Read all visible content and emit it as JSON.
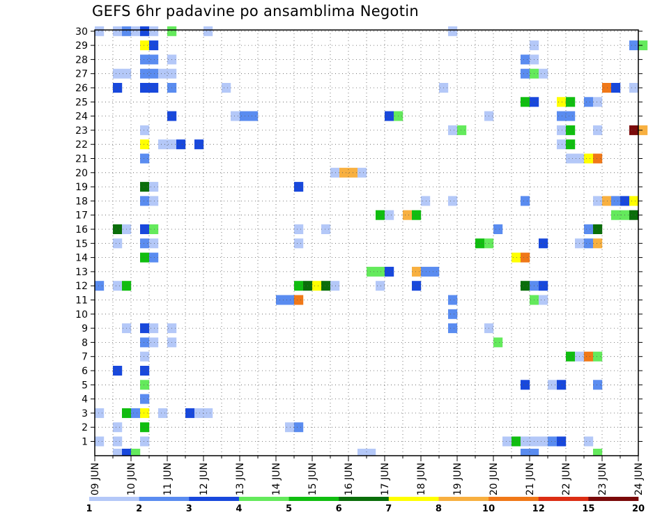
{
  "chart_data": {
    "type": "heatmap",
    "title": "GEFS 6hr padavine po ansamblima Negotin",
    "xlabel": "",
    "ylabel": "",
    "x_tick_labels": [
      "09 JUN",
      "10 JUN",
      "11 JUN",
      "12 JUN",
      "13 JUN",
      "14 JUN",
      "15 JUN",
      "16 JUN",
      "17 JUN",
      "18 JUN",
      "19 JUN",
      "20 JUN",
      "21 JUN",
      "22 JUN",
      "23 JUN",
      "24 JUN"
    ],
    "x_range_days": [
      0,
      15
    ],
    "time_step_hours": 6,
    "ensemble_members": [
      1,
      2,
      3,
      4,
      5,
      6,
      7,
      8,
      9,
      10,
      11,
      12,
      13,
      14,
      15,
      16,
      17,
      18,
      19,
      20,
      21,
      22,
      23,
      24,
      25,
      26,
      27,
      28,
      29,
      30
    ],
    "y_tick_labels": [
      "1",
      "2",
      "3",
      "4",
      "5",
      "6",
      "7",
      "8",
      "9",
      "10",
      "11",
      "12",
      "13",
      "14",
      "15",
      "16",
      "17",
      "18",
      "19",
      "20",
      "21",
      "22",
      "23",
      "24",
      "25",
      "26",
      "27",
      "28",
      "29",
      "30"
    ],
    "grid": true,
    "colorbar": {
      "position": "bottom",
      "tick_labels": [
        "1",
        "2",
        "3",
        "4",
        "5",
        "6",
        "7",
        "8",
        "10",
        "12",
        "15",
        "20"
      ],
      "colors": [
        "#b4c8f8",
        "#5a8cf0",
        "#1848dc",
        "#64ea5c",
        "#10be10",
        "#0a6e0a",
        "#ffff00",
        "#f8b040",
        "#f07818",
        "#dc2e14",
        "#7a0a0a"
      ]
    },
    "cells": [
      {
        "member": 30,
        "step": 0,
        "cls": 0
      },
      {
        "member": 30,
        "step": 2,
        "cls": 0
      },
      {
        "member": 30,
        "step": 3,
        "cls": 1
      },
      {
        "member": 30,
        "step": 4,
        "cls": 0
      },
      {
        "member": 30,
        "step": 5,
        "cls": 2
      },
      {
        "member": 30,
        "step": 6,
        "cls": 0
      },
      {
        "member": 30,
        "step": 8,
        "cls": 3
      },
      {
        "member": 30,
        "step": 12,
        "cls": 0
      },
      {
        "member": 30,
        "step": 39,
        "cls": 0
      },
      {
        "member": 29,
        "step": 5,
        "cls": 6
      },
      {
        "member": 29,
        "step": 6,
        "cls": 2
      },
      {
        "member": 29,
        "step": 48,
        "cls": 0
      },
      {
        "member": 29,
        "step": 59,
        "cls": 1
      },
      {
        "member": 29,
        "step": 60,
        "cls": 3
      },
      {
        "member": 28,
        "step": 5,
        "cls": 1
      },
      {
        "member": 28,
        "step": 6,
        "cls": 1
      },
      {
        "member": 28,
        "step": 8,
        "cls": 0
      },
      {
        "member": 28,
        "step": 47,
        "cls": 1
      },
      {
        "member": 28,
        "step": 48,
        "cls": 0
      },
      {
        "member": 27,
        "step": 2,
        "cls": 0
      },
      {
        "member": 27,
        "step": 3,
        "cls": 0
      },
      {
        "member": 27,
        "step": 5,
        "cls": 1
      },
      {
        "member": 27,
        "step": 6,
        "cls": 1
      },
      {
        "member": 27,
        "step": 7,
        "cls": 0
      },
      {
        "member": 27,
        "step": 8,
        "cls": 0
      },
      {
        "member": 27,
        "step": 47,
        "cls": 1
      },
      {
        "member": 27,
        "step": 48,
        "cls": 3
      },
      {
        "member": 27,
        "step": 49,
        "cls": 0
      },
      {
        "member": 26,
        "step": 2,
        "cls": 2
      },
      {
        "member": 26,
        "step": 5,
        "cls": 2
      },
      {
        "member": 26,
        "step": 6,
        "cls": 2
      },
      {
        "member": 26,
        "step": 8,
        "cls": 1
      },
      {
        "member": 26,
        "step": 14,
        "cls": 0
      },
      {
        "member": 26,
        "step": 38,
        "cls": 0
      },
      {
        "member": 26,
        "step": 56,
        "cls": 8
      },
      {
        "member": 26,
        "step": 57,
        "cls": 2
      },
      {
        "member": 26,
        "step": 59,
        "cls": 0
      },
      {
        "member": 25,
        "step": 47,
        "cls": 4
      },
      {
        "member": 25,
        "step": 48,
        "cls": 2
      },
      {
        "member": 25,
        "step": 51,
        "cls": 6
      },
      {
        "member": 25,
        "step": 52,
        "cls": 4
      },
      {
        "member": 25,
        "step": 54,
        "cls": 1
      },
      {
        "member": 25,
        "step": 55,
        "cls": 0
      },
      {
        "member": 24,
        "step": 8,
        "cls": 2
      },
      {
        "member": 24,
        "step": 15,
        "cls": 0
      },
      {
        "member": 24,
        "step": 16,
        "cls": 1
      },
      {
        "member": 24,
        "step": 17,
        "cls": 1
      },
      {
        "member": 24,
        "step": 32,
        "cls": 2
      },
      {
        "member": 24,
        "step": 33,
        "cls": 3
      },
      {
        "member": 24,
        "step": 43,
        "cls": 0
      },
      {
        "member": 24,
        "step": 51,
        "cls": 1
      },
      {
        "member": 24,
        "step": 52,
        "cls": 1
      },
      {
        "member": 23,
        "step": 5,
        "cls": 0
      },
      {
        "member": 23,
        "step": 39,
        "cls": 0
      },
      {
        "member": 23,
        "step": 40,
        "cls": 3
      },
      {
        "member": 23,
        "step": 51,
        "cls": 0
      },
      {
        "member": 23,
        "step": 52,
        "cls": 4
      },
      {
        "member": 23,
        "step": 55,
        "cls": 0
      },
      {
        "member": 23,
        "step": 59,
        "cls": 10
      },
      {
        "member": 23,
        "step": 60,
        "cls": 7
      },
      {
        "member": 22,
        "step": 5,
        "cls": 6
      },
      {
        "member": 22,
        "step": 7,
        "cls": 0
      },
      {
        "member": 22,
        "step": 8,
        "cls": 0
      },
      {
        "member": 22,
        "step": 9,
        "cls": 2
      },
      {
        "member": 22,
        "step": 11,
        "cls": 2
      },
      {
        "member": 22,
        "step": 51,
        "cls": 0
      },
      {
        "member": 22,
        "step": 52,
        "cls": 4
      },
      {
        "member": 21,
        "step": 5,
        "cls": 1
      },
      {
        "member": 21,
        "step": 52,
        "cls": 0
      },
      {
        "member": 21,
        "step": 53,
        "cls": 0
      },
      {
        "member": 21,
        "step": 54,
        "cls": 6
      },
      {
        "member": 21,
        "step": 55,
        "cls": 8
      },
      {
        "member": 20,
        "step": 26,
        "cls": 0
      },
      {
        "member": 20,
        "step": 27,
        "cls": 7
      },
      {
        "member": 20,
        "step": 28,
        "cls": 7
      },
      {
        "member": 20,
        "step": 29,
        "cls": 0
      },
      {
        "member": 19,
        "step": 5,
        "cls": 5
      },
      {
        "member": 19,
        "step": 6,
        "cls": 0
      },
      {
        "member": 19,
        "step": 22,
        "cls": 2
      },
      {
        "member": 18,
        "step": 5,
        "cls": 1
      },
      {
        "member": 18,
        "step": 6,
        "cls": 0
      },
      {
        "member": 18,
        "step": 36,
        "cls": 0
      },
      {
        "member": 18,
        "step": 39,
        "cls": 0
      },
      {
        "member": 18,
        "step": 47,
        "cls": 1
      },
      {
        "member": 18,
        "step": 55,
        "cls": 0
      },
      {
        "member": 18,
        "step": 56,
        "cls": 7
      },
      {
        "member": 18,
        "step": 57,
        "cls": 1
      },
      {
        "member": 18,
        "step": 58,
        "cls": 2
      },
      {
        "member": 18,
        "step": 59,
        "cls": 6
      },
      {
        "member": 17,
        "step": 31,
        "cls": 4
      },
      {
        "member": 17,
        "step": 32,
        "cls": 0
      },
      {
        "member": 17,
        "step": 34,
        "cls": 7
      },
      {
        "member": 17,
        "step": 35,
        "cls": 4
      },
      {
        "member": 17,
        "step": 57,
        "cls": 3
      },
      {
        "member": 17,
        "step": 58,
        "cls": 3
      },
      {
        "member": 17,
        "step": 59,
        "cls": 5
      },
      {
        "member": 16,
        "step": 2,
        "cls": 5
      },
      {
        "member": 16,
        "step": 3,
        "cls": 0
      },
      {
        "member": 16,
        "step": 5,
        "cls": 2
      },
      {
        "member": 16,
        "step": 6,
        "cls": 3
      },
      {
        "member": 16,
        "step": 22,
        "cls": 0
      },
      {
        "member": 16,
        "step": 25,
        "cls": 0
      },
      {
        "member": 16,
        "step": 44,
        "cls": 1
      },
      {
        "member": 16,
        "step": 54,
        "cls": 1
      },
      {
        "member": 16,
        "step": 55,
        "cls": 5
      },
      {
        "member": 15,
        "step": 2,
        "cls": 0
      },
      {
        "member": 15,
        "step": 5,
        "cls": 1
      },
      {
        "member": 15,
        "step": 6,
        "cls": 0
      },
      {
        "member": 15,
        "step": 22,
        "cls": 0
      },
      {
        "member": 15,
        "step": 42,
        "cls": 4
      },
      {
        "member": 15,
        "step": 43,
        "cls": 3
      },
      {
        "member": 15,
        "step": 49,
        "cls": 2
      },
      {
        "member": 15,
        "step": 53,
        "cls": 0
      },
      {
        "member": 15,
        "step": 54,
        "cls": 1
      },
      {
        "member": 15,
        "step": 55,
        "cls": 7
      },
      {
        "member": 14,
        "step": 5,
        "cls": 4
      },
      {
        "member": 14,
        "step": 6,
        "cls": 1
      },
      {
        "member": 14,
        "step": 46,
        "cls": 6
      },
      {
        "member": 14,
        "step": 47,
        "cls": 8
      },
      {
        "member": 13,
        "step": 30,
        "cls": 3
      },
      {
        "member": 13,
        "step": 31,
        "cls": 3
      },
      {
        "member": 13,
        "step": 32,
        "cls": 2
      },
      {
        "member": 13,
        "step": 35,
        "cls": 7
      },
      {
        "member": 13,
        "step": 36,
        "cls": 1
      },
      {
        "member": 13,
        "step": 37,
        "cls": 1
      },
      {
        "member": 12,
        "step": 0,
        "cls": 1
      },
      {
        "member": 12,
        "step": 2,
        "cls": 0
      },
      {
        "member": 12,
        "step": 3,
        "cls": 4
      },
      {
        "member": 12,
        "step": 22,
        "cls": 4
      },
      {
        "member": 12,
        "step": 23,
        "cls": 5
      },
      {
        "member": 12,
        "step": 24,
        "cls": 6
      },
      {
        "member": 12,
        "step": 25,
        "cls": 5
      },
      {
        "member": 12,
        "step": 26,
        "cls": 0
      },
      {
        "member": 12,
        "step": 31,
        "cls": 0
      },
      {
        "member": 12,
        "step": 35,
        "cls": 2
      },
      {
        "member": 12,
        "step": 47,
        "cls": 5
      },
      {
        "member": 12,
        "step": 48,
        "cls": 1
      },
      {
        "member": 12,
        "step": 49,
        "cls": 2
      },
      {
        "member": 11,
        "step": 20,
        "cls": 1
      },
      {
        "member": 11,
        "step": 21,
        "cls": 1
      },
      {
        "member": 11,
        "step": 22,
        "cls": 8
      },
      {
        "member": 11,
        "step": 39,
        "cls": 1
      },
      {
        "member": 11,
        "step": 48,
        "cls": 3
      },
      {
        "member": 11,
        "step": 49,
        "cls": 0
      },
      {
        "member": 10,
        "step": 39,
        "cls": 1
      },
      {
        "member": 9,
        "step": 3,
        "cls": 0
      },
      {
        "member": 9,
        "step": 5,
        "cls": 2
      },
      {
        "member": 9,
        "step": 6,
        "cls": 0
      },
      {
        "member": 9,
        "step": 8,
        "cls": 0
      },
      {
        "member": 9,
        "step": 39,
        "cls": 1
      },
      {
        "member": 9,
        "step": 43,
        "cls": 0
      },
      {
        "member": 8,
        "step": 5,
        "cls": 1
      },
      {
        "member": 8,
        "step": 6,
        "cls": 0
      },
      {
        "member": 8,
        "step": 8,
        "cls": 0
      },
      {
        "member": 8,
        "step": 44,
        "cls": 3
      },
      {
        "member": 7,
        "step": 5,
        "cls": 0
      },
      {
        "member": 7,
        "step": 52,
        "cls": 4
      },
      {
        "member": 7,
        "step": 53,
        "cls": 0
      },
      {
        "member": 7,
        "step": 54,
        "cls": 8
      },
      {
        "member": 7,
        "step": 55,
        "cls": 3
      },
      {
        "member": 6,
        "step": 2,
        "cls": 2
      },
      {
        "member": 6,
        "step": 5,
        "cls": 2
      },
      {
        "member": 5,
        "step": 5,
        "cls": 3
      },
      {
        "member": 5,
        "step": 47,
        "cls": 2
      },
      {
        "member": 5,
        "step": 50,
        "cls": 0
      },
      {
        "member": 5,
        "step": 51,
        "cls": 2
      },
      {
        "member": 5,
        "step": 55,
        "cls": 1
      },
      {
        "member": 4,
        "step": 5,
        "cls": 1
      },
      {
        "member": 3,
        "step": 0,
        "cls": 0
      },
      {
        "member": 3,
        "step": 3,
        "cls": 4
      },
      {
        "member": 3,
        "step": 4,
        "cls": 1
      },
      {
        "member": 3,
        "step": 5,
        "cls": 6
      },
      {
        "member": 3,
        "step": 7,
        "cls": 0
      },
      {
        "member": 3,
        "step": 10,
        "cls": 2
      },
      {
        "member": 3,
        "step": 11,
        "cls": 0
      },
      {
        "member": 3,
        "step": 12,
        "cls": 0
      },
      {
        "member": 2,
        "step": 2,
        "cls": 0
      },
      {
        "member": 2,
        "step": 5,
        "cls": 4
      },
      {
        "member": 2,
        "step": 21,
        "cls": 0
      },
      {
        "member": 2,
        "step": 22,
        "cls": 1
      },
      {
        "member": 1,
        "step": 0,
        "cls": 0
      },
      {
        "member": 1,
        "step": 2,
        "cls": 0
      },
      {
        "member": 1,
        "step": 5,
        "cls": 0
      },
      {
        "member": 1,
        "step": 45,
        "cls": 0
      },
      {
        "member": 1,
        "step": 46,
        "cls": 4
      },
      {
        "member": 1,
        "step": 47,
        "cls": 0
      },
      {
        "member": 1,
        "step": 48,
        "cls": 0
      },
      {
        "member": 1,
        "step": 49,
        "cls": 0
      },
      {
        "member": 1,
        "step": 50,
        "cls": 1
      },
      {
        "member": 1,
        "step": 51,
        "cls": 2
      },
      {
        "member": 1,
        "step": 54,
        "cls": 0
      },
      {
        "member": 0,
        "step": 2,
        "cls": 0
      },
      {
        "member": 0,
        "step": 3,
        "cls": 2
      },
      {
        "member": 0,
        "step": 4,
        "cls": 3
      },
      {
        "member": 0,
        "step": 29,
        "cls": 0
      },
      {
        "member": 0,
        "step": 30,
        "cls": 0
      },
      {
        "member": 0,
        "step": 47,
        "cls": 1
      },
      {
        "member": 0,
        "step": 48,
        "cls": 1
      },
      {
        "member": 0,
        "step": 55,
        "cls": 3
      }
    ]
  }
}
